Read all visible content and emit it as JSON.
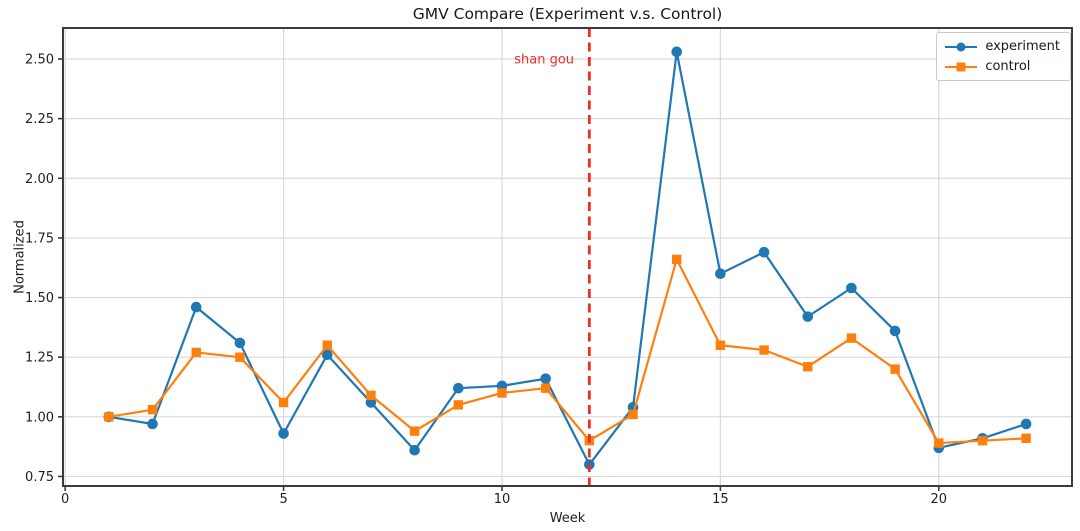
{
  "figure_title": "GMV Compare (Experiment v.s. Control)",
  "chart_data": {
    "type": "line",
    "title": "GMV Compare (Experiment v.s. Control)",
    "xlabel": "Week",
    "ylabel": "Normalized",
    "x": [
      1,
      2,
      3,
      4,
      5,
      6,
      7,
      8,
      9,
      10,
      11,
      12,
      13,
      14,
      15,
      16,
      17,
      18,
      19,
      20,
      21,
      22
    ],
    "series": [
      {
        "name": "experiment",
        "color": "#1f77b4",
        "marker": "circle",
        "values": [
          1.0,
          0.97,
          1.46,
          1.31,
          0.93,
          1.26,
          1.06,
          0.86,
          1.12,
          1.13,
          1.16,
          0.8,
          1.04,
          2.53,
          1.6,
          1.69,
          1.42,
          1.54,
          1.36,
          0.87,
          0.91,
          0.97
        ]
      },
      {
        "name": "control",
        "color": "#ff7f0e",
        "marker": "square",
        "values": [
          1.0,
          1.03,
          1.27,
          1.25,
          1.06,
          1.3,
          1.09,
          0.94,
          1.05,
          1.1,
          1.12,
          0.9,
          1.01,
          1.66,
          1.3,
          1.28,
          1.21,
          1.33,
          1.2,
          0.89,
          0.9,
          0.91
        ]
      }
    ],
    "xlim": [
      -0.05,
      23.05
    ],
    "ylim": [
      0.71,
      2.63
    ],
    "xticks": [
      0,
      5,
      10,
      15,
      20
    ],
    "xtick_labels": [
      "0",
      "5",
      "10",
      "15",
      "20"
    ],
    "yticks": [
      0.75,
      1.0,
      1.25,
      1.5,
      1.75,
      2.0,
      2.25,
      2.5
    ],
    "ytick_labels": [
      "0.75",
      "1.00",
      "1.25",
      "1.50",
      "1.75",
      "2.00",
      "2.25",
      "2.50"
    ],
    "grid": true,
    "legend_position": "upper right",
    "vline": {
      "x": 12,
      "color": "#ee2e24",
      "style": "dashed"
    },
    "annotation": {
      "text": "shan gou",
      "x": 11.65,
      "y": 2.5,
      "color": "#ee2e24",
      "anchor": "end"
    }
  },
  "style_colors": {
    "grid": "#d9d9d9",
    "spine": "#3b3b3b",
    "tick_text": "#1f1f1f"
  }
}
